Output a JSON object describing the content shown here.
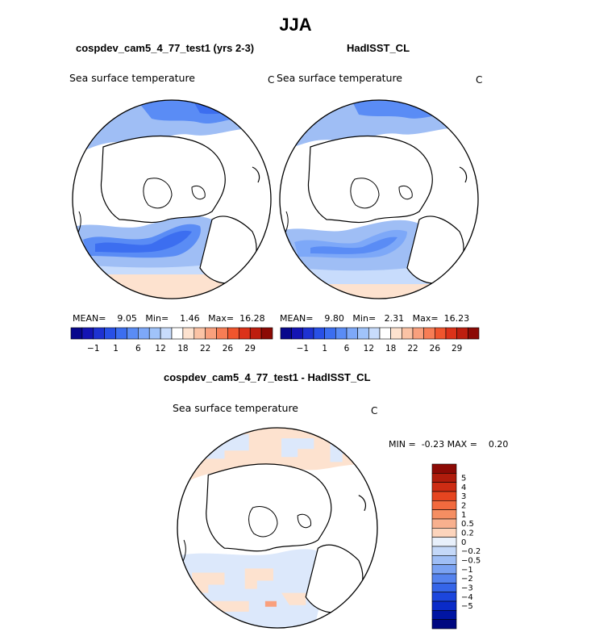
{
  "figure": {
    "main_title": "JJA"
  },
  "panels": [
    {
      "title": "cospdev_cam5_4_77_test1 (yrs 2-3)",
      "field_title": "Sea surface temperature",
      "unit": "C",
      "stats": {
        "mean_label": "MEAN=",
        "mean": "9.05",
        "min_label": "Min=",
        "min": "1.46",
        "max_label": "Max=",
        "max": "16.28"
      }
    },
    {
      "title": "HadISST_CL",
      "field_title": "Sea surface temperature",
      "unit": "C",
      "stats": {
        "mean_label": "MEAN=",
        "mean": "9.80",
        "min_label": "Min=",
        "min": "2.31",
        "max_label": "Max=",
        "max": "16.23"
      }
    }
  ],
  "diff_panel": {
    "title": "cospdev_cam5_4_77_test1 - HadISST_CL",
    "field_title": "Sea surface temperature",
    "unit": "C",
    "stats": {
      "min_label": "MIN =",
      "min": "-0.23",
      "max_label": "MAX =",
      "max": "0.20"
    }
  },
  "colorbar_field": {
    "colors": [
      "#08088c",
      "#1414b4",
      "#1e32d2",
      "#2850e6",
      "#3c6ef0",
      "#5a8cf5",
      "#7da8f8",
      "#a0c3fa",
      "#c8dcfc",
      "#ffffff",
      "#fde2cf",
      "#fbc3a5",
      "#f9a07d",
      "#f77d55",
      "#f0552d",
      "#dc3219",
      "#be1e0f",
      "#8c0a05"
    ],
    "tick_labels": [
      "-1",
      "1",
      "6",
      "12",
      "18",
      "22",
      "26",
      "29"
    ]
  },
  "colorbar_diff": {
    "colors": [
      "#8c0a05",
      "#b01c0c",
      "#cd2c13",
      "#e64520",
      "#f26a3e",
      "#f58e62",
      "#f8b08e",
      "#fcd4bc",
      "#e8f0fb",
      "#c4d8f8",
      "#9fbef5",
      "#7aa2f2",
      "#5583ee",
      "#3565e8",
      "#1c46dd",
      "#0a2bc8",
      "#0015a3",
      "#000880"
    ],
    "tick_labels": [
      "5",
      "4",
      "3",
      "2",
      "1",
      "0.5",
      "0.2",
      "0",
      "-0.2",
      "-0.5",
      "-1",
      "-2",
      "-3",
      "-4",
      "-5"
    ]
  },
  "colors": {
    "land": "#ffffff",
    "coast": "#000000",
    "light_blue": "#9fbef5",
    "mid_blue": "#5a8cf5",
    "deep_blue": "#3c6ef0",
    "pale_orange": "#fde2cf",
    "pale_blue": "#dce8fb"
  }
}
